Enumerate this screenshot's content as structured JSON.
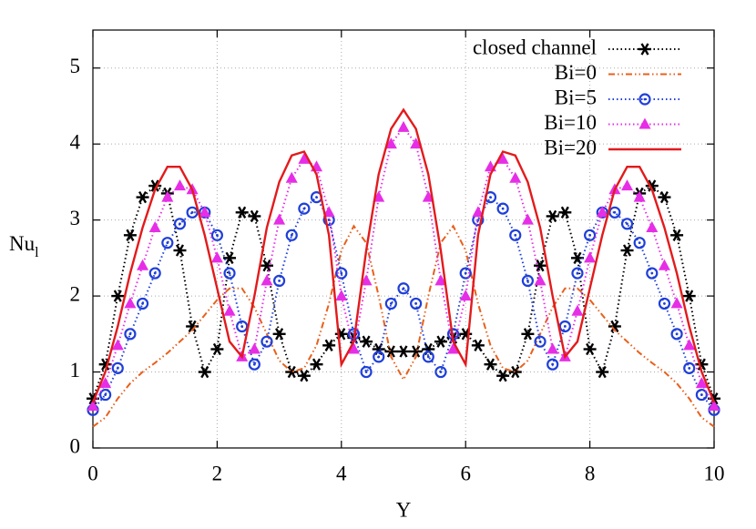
{
  "chart_data": {
    "type": "line",
    "xlabel": "Y",
    "ylabel": {
      "text": "Nu",
      "subscript": "l"
    },
    "xlim": [
      0,
      10
    ],
    "ylim": [
      0,
      5.5
    ],
    "xticks": [
      0,
      2,
      4,
      6,
      8,
      10
    ],
    "yticks": [
      0,
      1,
      2,
      3,
      4,
      5
    ],
    "grid": true,
    "legend": "top-right",
    "x": [
      0,
      0.2,
      0.4,
      0.6,
      0.8,
      1,
      1.2,
      1.4,
      1.6,
      1.8,
      2,
      2.2,
      2.4,
      2.6,
      2.8,
      3,
      3.2,
      3.4,
      3.6,
      3.8,
      4,
      4.2,
      4.4,
      4.6,
      4.8,
      5,
      5.2,
      5.4,
      5.6,
      5.8,
      6,
      6.2,
      6.4,
      6.6,
      6.8,
      7,
      7.2,
      7.4,
      7.6,
      7.8,
      8,
      8.2,
      8.4,
      8.6,
      8.8,
      9,
      9.2,
      9.4,
      9.6,
      9.8,
      10
    ],
    "series": [
      {
        "name": "closed channel",
        "color": "#000000",
        "dash": "dotted",
        "marker": "asterisk",
        "values": [
          0.65,
          1.1,
          2.0,
          2.8,
          3.3,
          3.45,
          3.35,
          2.6,
          1.6,
          1.0,
          1.3,
          2.5,
          3.1,
          3.05,
          2.4,
          1.5,
          1.0,
          0.95,
          1.1,
          1.35,
          1.5,
          1.45,
          1.4,
          1.3,
          1.27,
          1.27,
          1.27,
          1.3,
          1.4,
          1.45,
          1.5,
          1.35,
          1.1,
          0.95,
          1.0,
          1.5,
          2.4,
          3.05,
          3.1,
          2.5,
          1.3,
          1.0,
          1.6,
          2.6,
          3.35,
          3.45,
          3.3,
          2.8,
          2.0,
          1.1,
          0.65
        ]
      },
      {
        "name": "Bi=0",
        "color": "#e8601c",
        "dash": "dash-dot-dot",
        "marker": "none",
        "values": [
          0.28,
          0.4,
          0.65,
          0.85,
          1.0,
          1.12,
          1.25,
          1.4,
          1.55,
          1.75,
          1.95,
          2.1,
          2.1,
          1.85,
          1.5,
          1.15,
          1.0,
          1.05,
          1.35,
          1.9,
          2.6,
          2.92,
          2.7,
          2.0,
          1.2,
          0.9,
          1.2,
          2.0,
          2.7,
          2.92,
          2.6,
          1.9,
          1.35,
          1.05,
          1.0,
          1.15,
          1.5,
          1.85,
          2.1,
          2.1,
          1.95,
          1.75,
          1.55,
          1.4,
          1.25,
          1.12,
          1.0,
          0.85,
          0.65,
          0.4,
          0.28
        ]
      },
      {
        "name": "Bi=5",
        "color": "#1f3fd8",
        "dash": "dotted",
        "marker": "circle",
        "values": [
          0.5,
          0.7,
          1.05,
          1.5,
          1.9,
          2.3,
          2.7,
          2.95,
          3.1,
          3.1,
          2.8,
          2.3,
          1.6,
          1.1,
          1.4,
          2.2,
          2.8,
          3.15,
          3.3,
          3.0,
          2.3,
          1.5,
          1.0,
          1.2,
          1.9,
          2.1,
          1.9,
          1.2,
          1.0,
          1.5,
          2.3,
          3.0,
          3.3,
          3.15,
          2.8,
          2.2,
          1.4,
          1.1,
          1.6,
          2.3,
          2.8,
          3.1,
          3.1,
          2.95,
          2.7,
          2.3,
          1.9,
          1.5,
          1.05,
          0.7,
          0.5
        ]
      },
      {
        "name": "Bi=10",
        "color": "#e62ee6",
        "dash": "dotted",
        "marker": "triangle",
        "values": [
          0.55,
          0.85,
          1.35,
          1.9,
          2.4,
          2.9,
          3.3,
          3.45,
          3.4,
          3.1,
          2.5,
          1.8,
          1.2,
          1.3,
          2.2,
          3.0,
          3.55,
          3.8,
          3.7,
          3.1,
          2.0,
          1.3,
          2.2,
          3.3,
          4.0,
          4.22,
          4.0,
          3.3,
          2.2,
          1.3,
          2.0,
          3.1,
          3.7,
          3.8,
          3.55,
          3.0,
          2.2,
          1.3,
          1.2,
          1.8,
          2.5,
          3.1,
          3.4,
          3.45,
          3.3,
          2.9,
          2.4,
          1.9,
          1.35,
          0.85,
          0.55
        ]
      },
      {
        "name": "Bi=20",
        "color": "#e31a1c",
        "dash": "solid",
        "marker": "none",
        "values": [
          0.6,
          1.0,
          1.6,
          2.3,
          2.9,
          3.4,
          3.7,
          3.7,
          3.4,
          2.8,
          2.1,
          1.4,
          1.2,
          2.0,
          2.9,
          3.5,
          3.85,
          3.9,
          3.6,
          2.8,
          1.1,
          1.4,
          2.6,
          3.6,
          4.2,
          4.45,
          4.2,
          3.6,
          2.6,
          1.4,
          1.1,
          2.8,
          3.6,
          3.9,
          3.85,
          3.5,
          2.9,
          2.0,
          1.2,
          1.4,
          2.1,
          2.8,
          3.4,
          3.7,
          3.7,
          3.4,
          2.9,
          2.3,
          1.6,
          1.0,
          0.6
        ]
      }
    ]
  }
}
